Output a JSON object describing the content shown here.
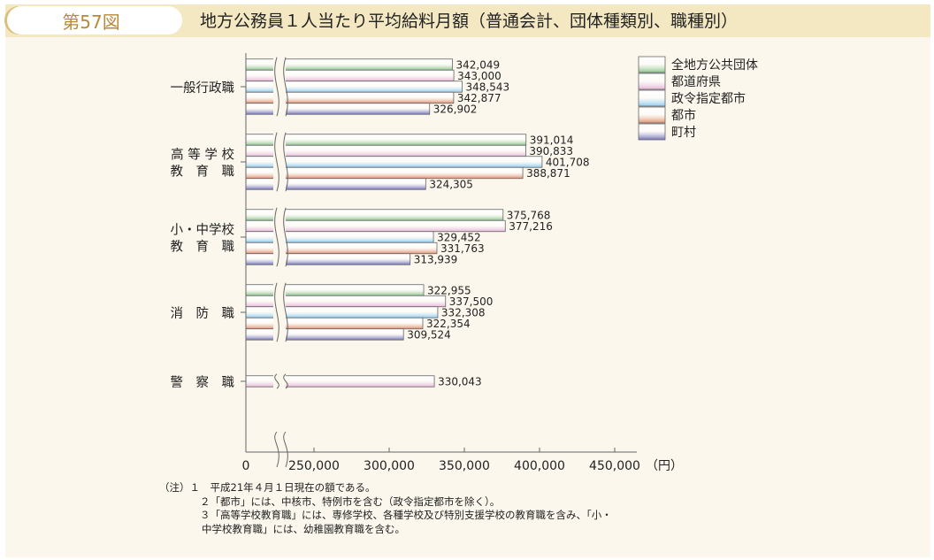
{
  "header": {
    "figure_no": "第57図",
    "title": "地方公務員１人当たり平均給料月額（普通会計、団体種類別、職種別）"
  },
  "chart_data": {
    "type": "bar",
    "orientation": "horizontal",
    "title": "地方公務員１人当たり平均給料月額（普通会計、団体種類別、職種別）",
    "categories": [
      [
        "一般行政職"
      ],
      [
        "高 等 学 校",
        "教　育　職"
      ],
      [
        "小・中学校",
        "教　育　職"
      ],
      [
        "消　防　職"
      ],
      [
        "警　察　職"
      ]
    ],
    "series": [
      {
        "name": "全地方公共団体",
        "color": "#8cc48c",
        "values": [
          342049,
          391014,
          375768,
          322955,
          null
        ]
      },
      {
        "name": "都道府県",
        "color": "#e6b6d8",
        "values": [
          343000,
          390833,
          377216,
          337500,
          330043
        ]
      },
      {
        "name": "政令指定都市",
        "color": "#8ccbf0",
        "values": [
          348543,
          401708,
          329452,
          332308,
          null
        ]
      },
      {
        "name": "都市",
        "color": "#e09070",
        "values": [
          342877,
          388871,
          331763,
          322354,
          null
        ]
      },
      {
        "name": "町村",
        "color": "#7272b8",
        "values": [
          326902,
          324305,
          313939,
          309524,
          null
        ]
      }
    ],
    "labels": [
      [
        "342,049",
        "343,000",
        "348,543",
        "342,877",
        "326,902"
      ],
      [
        "391,014",
        "390,833",
        "401,708",
        "388,871",
        "324,305"
      ],
      [
        "375,768",
        "377,216",
        "329,452",
        "331,763",
        "313,939"
      ],
      [
        "322,955",
        "337,500",
        "332,308",
        "322,354",
        "309,524"
      ],
      [
        null,
        "330,043",
        null,
        null,
        null
      ]
    ],
    "xticks": [
      "0",
      "250,000",
      "300,000",
      "350,000",
      "400,000",
      "450,000"
    ],
    "xunit": "（円）",
    "xlim": [
      250000,
      450000
    ],
    "axis_break": [
      0,
      250000
    ],
    "legend": "top-right"
  },
  "notes": [
    "（注）１　平成21年４月１日現在の額である。",
    "２「都市」には、中核市、特例市を含む（政令指定都市を除く）。",
    "３「高等学校教育職」には、専修学校、各種学校及び特別支援学校の教育職を含み、「小・",
    "中学校教育職」には、幼稚園教育職を含む。"
  ]
}
